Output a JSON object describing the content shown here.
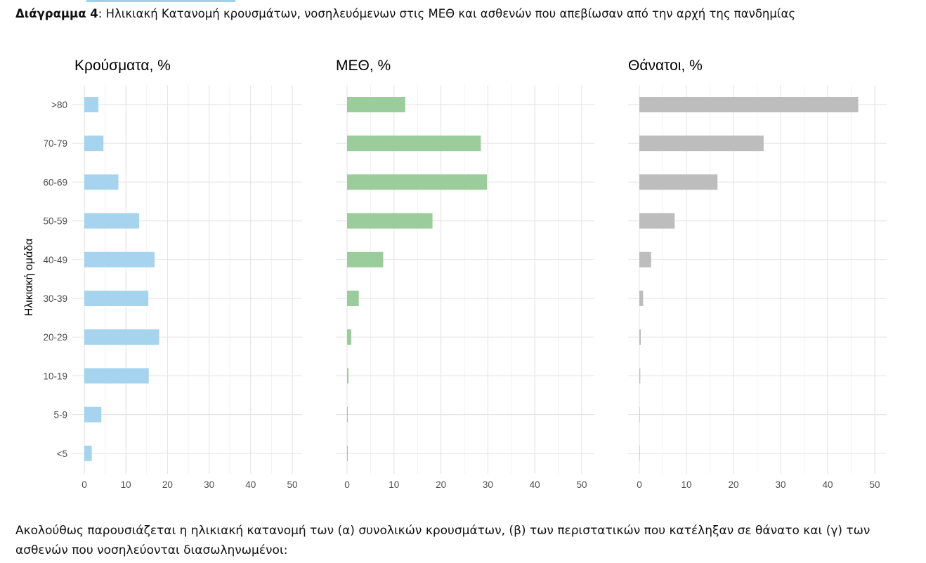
{
  "caption": {
    "bold": "Διάγραμμα 4",
    "text": ": Ηλικιακή Κατανομή κρουσμάτων, νοσηλευόμενων στις ΜΕΘ και ασθενών που απεβίωσαν από την αρχή της πανδημίας"
  },
  "footer": "Ακολούθως παρουσιάζεται η ηλικιακή κατανομή των (α) συνολικών κρουσμάτων, (β) των περιστατικών που κατέληξαν σε θάνατο και (γ) των ασθενών που νοσηλεύονται διασωληνωμένοι:",
  "chart_data": [
    {
      "type": "bar",
      "orientation": "horizontal",
      "title": "Κρούσματα, %",
      "ylabel": "Ηλικιακή ομάδα",
      "categories": [
        ">80",
        "70-79",
        "60-69",
        "50-59",
        "40-49",
        "30-39",
        "20-29",
        "10-19",
        "5-9",
        "<5"
      ],
      "values": [
        3.4,
        4.6,
        8.2,
        13.2,
        16.9,
        15.4,
        18.0,
        15.5,
        4.1,
        1.8
      ],
      "xticks": [
        "0",
        "10",
        "20",
        "30",
        "40",
        "50"
      ],
      "xlim": [
        0,
        52
      ],
      "color": "#a6d4ee",
      "grid": true
    },
    {
      "type": "bar",
      "orientation": "horizontal",
      "title": "ΜΕΘ, %",
      "categories": [
        ">80",
        "70-79",
        "60-69",
        "50-59",
        "40-49",
        "30-39",
        "20-29",
        "10-19",
        "5-9",
        "<5"
      ],
      "values": [
        12.4,
        28.5,
        29.8,
        18.2,
        7.7,
        2.5,
        0.9,
        0.3,
        0.1,
        0.1
      ],
      "xticks": [
        "0",
        "10",
        "20",
        "30",
        "40",
        "50"
      ],
      "xlim": [
        0,
        52
      ],
      "color": "#9acd9b",
      "grid": true
    },
    {
      "type": "bar",
      "orientation": "horizontal",
      "title": "Θάνατοι, %",
      "categories": [
        ">80",
        "70-79",
        "60-69",
        "50-59",
        "40-49",
        "30-39",
        "20-29",
        "10-19",
        "5-9",
        "<5"
      ],
      "values": [
        46.5,
        26.4,
        16.6,
        7.5,
        2.5,
        0.8,
        0.3,
        0.2,
        0.0,
        0.0
      ],
      "xticks": [
        "0",
        "10",
        "20",
        "30",
        "40",
        "50"
      ],
      "xlim": [
        0,
        52
      ],
      "color": "#bdbdbd",
      "grid": true
    }
  ]
}
